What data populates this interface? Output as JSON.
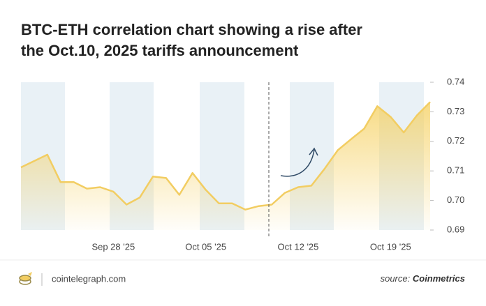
{
  "chart_data": {
    "type": "line",
    "title_lines": [
      "BTC-ETH correlation chart showing a rise after",
      "the Oct.10, 2025 tariffs announcement"
    ],
    "x": [
      "2025-09-21",
      "2025-09-23",
      "2025-09-24",
      "2025-09-25",
      "2025-09-26",
      "2025-09-27",
      "2025-09-28",
      "2025-09-29",
      "2025-09-30",
      "2025-10-01",
      "2025-10-02",
      "2025-10-03",
      "2025-10-04",
      "2025-10-05",
      "2025-10-06",
      "2025-10-07",
      "2025-10-08",
      "2025-10-09",
      "2025-10-10",
      "2025-10-11",
      "2025-10-12",
      "2025-10-13",
      "2025-10-14",
      "2025-10-15",
      "2025-10-16",
      "2025-10-17",
      "2025-10-18",
      "2025-10-19",
      "2025-10-20",
      "2025-10-21",
      "2025-10-22"
    ],
    "series": [
      {
        "name": "BTC-ETH correlation",
        "color": "#f2cd62",
        "values": [
          0.7112,
          0.7155,
          0.7062,
          0.7062,
          0.704,
          0.7045,
          0.703,
          0.6986,
          0.701,
          0.7081,
          0.7076,
          0.7019,
          0.7093,
          0.7036,
          0.699,
          0.699,
          0.6969,
          0.6981,
          0.6986,
          0.7026,
          0.7045,
          0.705,
          0.7107,
          0.717,
          0.7207,
          0.7243,
          0.7319,
          0.7283,
          0.723,
          0.7288,
          0.7333
        ]
      }
    ],
    "xlim": [
      "2025-09-21",
      "2025-10-22"
    ],
    "xticks": [
      {
        "value": "2025-09-28",
        "label": "Sep 28 '25"
      },
      {
        "value": "2025-10-05",
        "label": "Oct 05 '25"
      },
      {
        "value": "2025-10-12",
        "label": "Oct 12 '25"
      },
      {
        "value": "2025-10-19",
        "label": "Oct 19 '25"
      }
    ],
    "ylim": [
      0.69,
      0.74
    ],
    "yticks": [
      0.74,
      0.73,
      0.72,
      0.71,
      {
        "value": 0.7,
        "label": "0.70"
      },
      0.69
    ],
    "footer": {
      "site": "cointelegraph.com",
      "source_label": "source:",
      "source_name": "Coinmetrics"
    }
  }
}
